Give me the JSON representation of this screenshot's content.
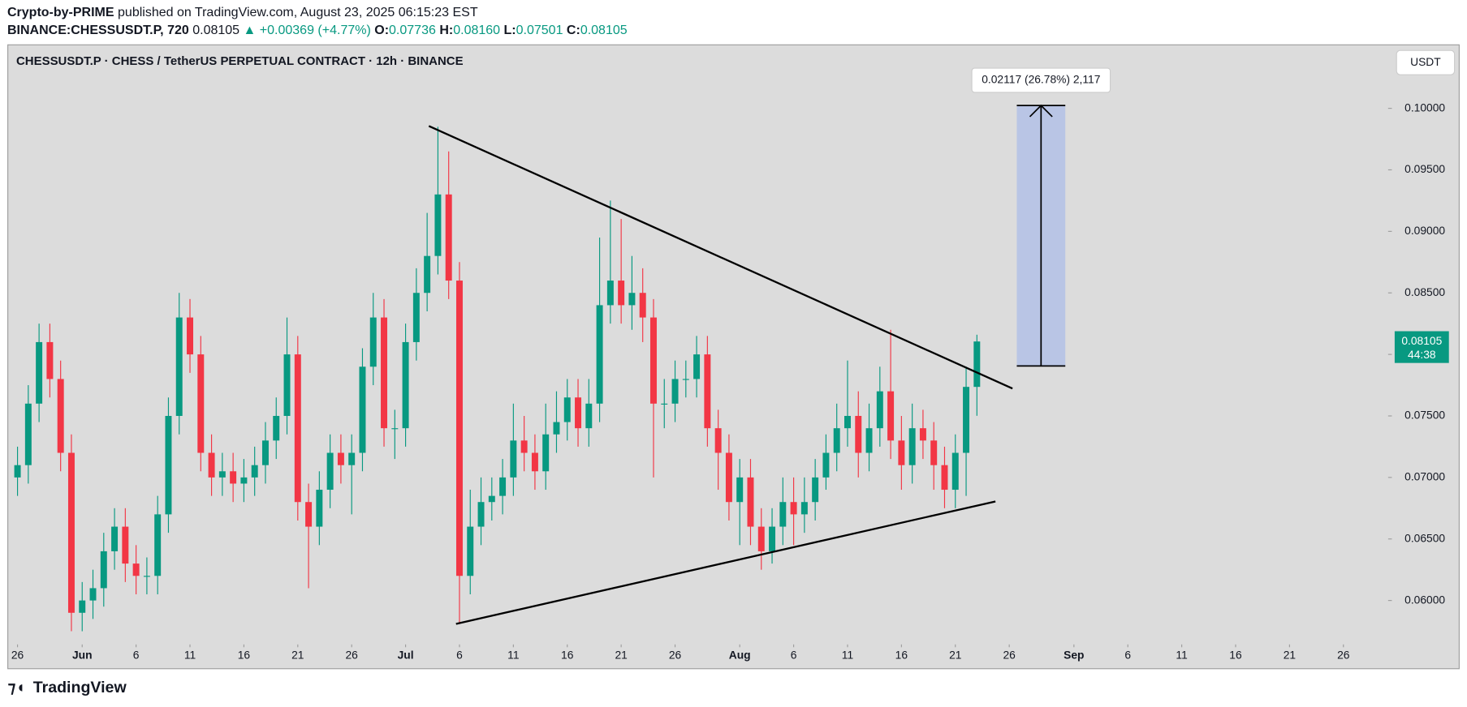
{
  "header": {
    "author": "Crypto-by-PRIME",
    "published": "published on TradingView.com, August 23, 2025 06:15:23 EST",
    "symbol": "BINANCE:CHESSUSDT.P, 720",
    "last": "0.08105",
    "change": "▲ +0.00369 (+4.77%)",
    "o_label": "O:",
    "o": "0.07736",
    "h_label": "H:",
    "h": "0.08160",
    "l_label": "L:",
    "l": "0.07501",
    "c_label": "C:",
    "c": "0.08105"
  },
  "footer": {
    "brand": "TradingView"
  },
  "chart_data": {
    "type": "candlestick",
    "title": "CHESSUSDT.P · CHESS / TetherUS PERPETUAL CONTRACT · 12h · BINANCE",
    "currency": "USDT",
    "up_color": "#089981",
    "down_color": "#f23645",
    "x": [
      0,
      1,
      2,
      3,
      4,
      5,
      6,
      7,
      8,
      9,
      10,
      11,
      12,
      13,
      14,
      15,
      16,
      17,
      18,
      19,
      20,
      21,
      22,
      23,
      24,
      25,
      26,
      27,
      28,
      29,
      30,
      31,
      32,
      33,
      34,
      35,
      36,
      37,
      38,
      39,
      40,
      41,
      42,
      43,
      44,
      45,
      46,
      47,
      48,
      49,
      50,
      51,
      52,
      53,
      54,
      55,
      56,
      57,
      58,
      59,
      60,
      61,
      62,
      63,
      64,
      65,
      66,
      67,
      68,
      69,
      70,
      71,
      72,
      73,
      74,
      75,
      76,
      77,
      78,
      79,
      80,
      81,
      82,
      83,
      84,
      85,
      86,
      87,
      88,
      89
    ],
    "open": [
      0.07,
      0.071,
      0.076,
      0.081,
      0.078,
      0.072,
      0.059,
      0.06,
      0.061,
      0.064,
      0.066,
      0.063,
      0.062,
      0.062,
      0.067,
      0.075,
      0.083,
      0.08,
      0.072,
      0.07,
      0.0705,
      0.0695,
      0.07,
      0.071,
      0.073,
      0.075,
      0.08,
      0.068,
      0.066,
      0.069,
      0.072,
      0.071,
      0.072,
      0.079,
      0.083,
      0.074,
      0.074,
      0.081,
      0.085,
      0.088,
      0.093,
      0.086,
      0.062,
      0.066,
      0.068,
      0.0685,
      0.07,
      0.073,
      0.072,
      0.0705,
      0.0735,
      0.0745,
      0.0765,
      0.074,
      0.076,
      0.084,
      0.086,
      0.084,
      0.085,
      0.083,
      0.076,
      0.076,
      0.078,
      0.078,
      0.08,
      0.074,
      0.072,
      0.068,
      0.07,
      0.066,
      0.064,
      0.066,
      0.068,
      0.067,
      0.068,
      0.07,
      0.072,
      0.074,
      0.075,
      0.072,
      0.074,
      0.077,
      0.073,
      0.071,
      0.074,
      0.073,
      0.071,
      0.069,
      0.072,
      0.07736
    ],
    "high": [
      0.0725,
      0.0775,
      0.0825,
      0.0825,
      0.0795,
      0.0735,
      0.0615,
      0.0625,
      0.0655,
      0.0675,
      0.0675,
      0.0645,
      0.0635,
      0.0685,
      0.0765,
      0.085,
      0.0845,
      0.0815,
      0.0735,
      0.072,
      0.072,
      0.0715,
      0.0725,
      0.0745,
      0.0765,
      0.083,
      0.0815,
      0.0695,
      0.0705,
      0.0735,
      0.0735,
      0.0735,
      0.0805,
      0.085,
      0.0845,
      0.0755,
      0.0825,
      0.087,
      0.0915,
      0.0985,
      0.0965,
      0.0875,
      0.069,
      0.07,
      0.07,
      0.0715,
      0.076,
      0.075,
      0.0735,
      0.076,
      0.077,
      0.078,
      0.078,
      0.078,
      0.0895,
      0.0925,
      0.091,
      0.088,
      0.087,
      0.0845,
      0.078,
      0.0795,
      0.0795,
      0.0815,
      0.0815,
      0.0755,
      0.0735,
      0.0715,
      0.0715,
      0.0675,
      0.0675,
      0.07,
      0.07,
      0.07,
      0.0715,
      0.0735,
      0.076,
      0.0795,
      0.077,
      0.076,
      0.079,
      0.082,
      0.075,
      0.076,
      0.0755,
      0.0745,
      0.0725,
      0.0735,
      0.079,
      0.0816
    ],
    "low": [
      0.0685,
      0.0695,
      0.0745,
      0.0765,
      0.0705,
      0.0575,
      0.0575,
      0.0585,
      0.0595,
      0.0625,
      0.0615,
      0.0605,
      0.0605,
      0.0605,
      0.0655,
      0.0735,
      0.0785,
      0.0705,
      0.0685,
      0.0685,
      0.068,
      0.068,
      0.0685,
      0.0695,
      0.0715,
      0.0735,
      0.0665,
      0.061,
      0.0645,
      0.0675,
      0.0695,
      0.067,
      0.0705,
      0.0775,
      0.0725,
      0.0715,
      0.0725,
      0.0795,
      0.0835,
      0.0865,
      0.0845,
      0.0582,
      0.0605,
      0.0645,
      0.0665,
      0.067,
      0.0685,
      0.0705,
      0.069,
      0.069,
      0.072,
      0.073,
      0.0725,
      0.0725,
      0.0745,
      0.0825,
      0.0825,
      0.082,
      0.081,
      0.07,
      0.074,
      0.0745,
      0.0765,
      0.0765,
      0.0725,
      0.069,
      0.0665,
      0.0645,
      0.0645,
      0.0625,
      0.063,
      0.0645,
      0.0645,
      0.0655,
      0.0665,
      0.069,
      0.0705,
      0.0725,
      0.07,
      0.0705,
      0.0725,
      0.0715,
      0.069,
      0.0695,
      0.0715,
      0.069,
      0.0675,
      0.0675,
      0.0685,
      0.07501
    ],
    "close": [
      0.071,
      0.076,
      0.081,
      0.078,
      0.072,
      0.059,
      0.06,
      0.061,
      0.064,
      0.066,
      0.063,
      0.062,
      0.062,
      0.067,
      0.075,
      0.083,
      0.08,
      0.072,
      0.07,
      0.0705,
      0.0695,
      0.07,
      0.071,
      0.073,
      0.075,
      0.08,
      0.068,
      0.066,
      0.069,
      0.072,
      0.071,
      0.072,
      0.079,
      0.083,
      0.074,
      0.074,
      0.081,
      0.085,
      0.088,
      0.093,
      0.086,
      0.062,
      0.066,
      0.068,
      0.0685,
      0.07,
      0.073,
      0.072,
      0.0705,
      0.0735,
      0.0745,
      0.0765,
      0.074,
      0.076,
      0.084,
      0.086,
      0.084,
      0.085,
      0.083,
      0.076,
      0.076,
      0.078,
      0.078,
      0.08,
      0.074,
      0.072,
      0.068,
      0.07,
      0.066,
      0.064,
      0.066,
      0.068,
      0.067,
      0.068,
      0.07,
      0.072,
      0.074,
      0.075,
      0.072,
      0.074,
      0.077,
      0.073,
      0.071,
      0.074,
      0.073,
      0.071,
      0.069,
      0.072,
      0.07736,
      0.08105
    ],
    "xlim": [
      -0.9,
      126.8
    ],
    "xticks": [
      {
        "value": 0,
        "label": "26"
      },
      {
        "value": 6,
        "label": "Jun"
      },
      {
        "value": 11,
        "label": "6"
      },
      {
        "value": 16,
        "label": "11"
      },
      {
        "value": 21,
        "label": "16"
      },
      {
        "value": 26,
        "label": "21"
      },
      {
        "value": 31,
        "label": "26"
      },
      {
        "value": 36,
        "label": "Jul"
      },
      {
        "value": 41,
        "label": "6"
      },
      {
        "value": 46,
        "label": "11"
      },
      {
        "value": 51,
        "label": "16"
      },
      {
        "value": 56,
        "label": "21"
      },
      {
        "value": 61,
        "label": "26"
      },
      {
        "value": 67,
        "label": "Aug"
      },
      {
        "value": 72,
        "label": "6"
      },
      {
        "value": 77,
        "label": "11"
      },
      {
        "value": 82,
        "label": "16"
      },
      {
        "value": 87,
        "label": "21"
      },
      {
        "value": 92,
        "label": "26"
      },
      {
        "value": 98,
        "label": "Sep"
      },
      {
        "value": 103,
        "label": "6"
      },
      {
        "value": 108,
        "label": "11"
      },
      {
        "value": 113,
        "label": "16"
      },
      {
        "value": 118,
        "label": "21"
      },
      {
        "value": 123,
        "label": "26"
      }
    ],
    "ylim": [
      0.05658,
      0.10516
    ],
    "yticks": [
      {
        "value": 0.06,
        "label": "0.06000"
      },
      {
        "value": 0.065,
        "label": "0.06500"
      },
      {
        "value": 0.07,
        "label": "0.07000"
      },
      {
        "value": 0.075,
        "label": "0.07500"
      },
      {
        "value": 0.08,
        "label": "0.08000"
      },
      {
        "value": 0.085,
        "label": "0.08500"
      },
      {
        "value": 0.09,
        "label": "0.09000"
      },
      {
        "value": 0.095,
        "label": "0.09500"
      },
      {
        "value": 0.1,
        "label": "0.10000"
      }
    ],
    "last_price": {
      "value": 0.08105,
      "label": "0.08105",
      "countdown": "44:38"
    },
    "trendlines": [
      {
        "x": [
          38.16,
          92.3
        ],
        "y": [
          0.09856,
          0.07723
        ]
      },
      {
        "x": [
          40.68,
          90.72
        ],
        "y": [
          0.0581,
          0.06805
        ]
      }
    ],
    "measure": {
      "x": [
        92.7,
        97.2
      ],
      "from": 0.07906,
      "to": 0.10023,
      "label": "0.02117 (26.78%) 2,117",
      "color": "#b3c1e6"
    }
  }
}
